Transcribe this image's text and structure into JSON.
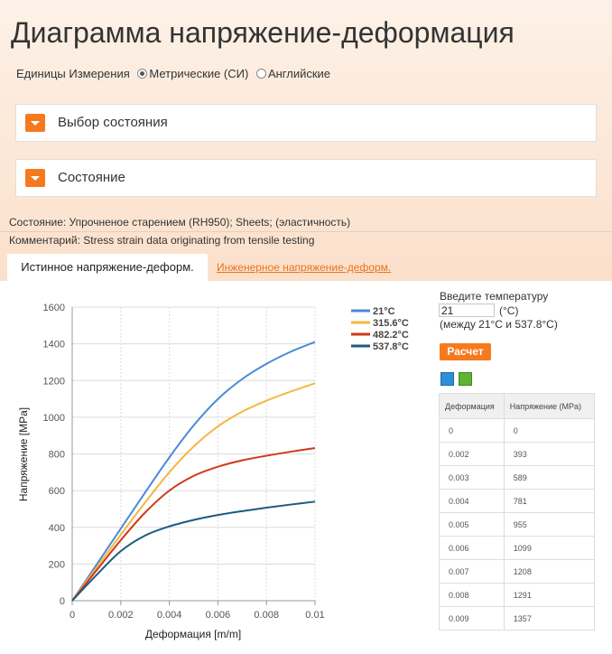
{
  "header": {
    "title": "Диаграмма напряжение-деформация",
    "units_label": "Единицы Измерения",
    "units_options": [
      "Метрические (СИ)",
      "Английские"
    ],
    "units_selected": "Метрические (СИ)"
  },
  "panels": [
    {
      "title": "Выбор состояния"
    },
    {
      "title": "Состояние"
    }
  ],
  "info": {
    "state": "Состояние: Упрочненое старением (RH950); Sheets; (эластичность)",
    "comment": "Комментарий: Stress strain data originating from tensile testing"
  },
  "tabs": {
    "active": "Истинное напряжение-деформ.",
    "inactive": "Инженерное напряжение-деформ."
  },
  "calculator": {
    "prompt": "Введите температуру",
    "value": "21",
    "unit": "(°C)",
    "range": "(между 21°C и 537.8°C)",
    "button": "Расчет"
  },
  "icons": {
    "export": "export-icon",
    "swap": "swap-icon"
  },
  "table": {
    "headers": [
      "Деформация",
      "Напряжение (MPa)"
    ],
    "rows": [
      [
        "0",
        "0"
      ],
      [
        "0.002",
        "393"
      ],
      [
        "0.003",
        "589"
      ],
      [
        "0.004",
        "781"
      ],
      [
        "0.005",
        "955"
      ],
      [
        "0.006",
        "1099"
      ],
      [
        "0.007",
        "1208"
      ],
      [
        "0.008",
        "1291"
      ],
      [
        "0.009",
        "1357"
      ]
    ]
  },
  "chart_data": {
    "type": "line",
    "xlabel": "Деформация [m/m]",
    "ylabel": "Напряжение [MPa]",
    "xlim": [
      0,
      0.01
    ],
    "ylim": [
      0,
      1600
    ],
    "xticks": [
      "0",
      "0.002",
      "0.004",
      "0.006",
      "0.008",
      "0.01"
    ],
    "yticks": [
      "0",
      "200",
      "400",
      "600",
      "800",
      "1000",
      "1200",
      "1400",
      "1600"
    ],
    "grid": true,
    "legend_position": "right",
    "series": [
      {
        "name": "21°C",
        "color": "#4a8ad9",
        "x": [
          0,
          0.001,
          0.002,
          0.003,
          0.004,
          0.005,
          0.006,
          0.007,
          0.008,
          0.009,
          0.01
        ],
        "y": [
          0,
          196,
          393,
          589,
          781,
          955,
          1099,
          1208,
          1291,
          1357,
          1410
        ]
      },
      {
        "name": "315.6°C",
        "color": "#f4b840",
        "x": [
          0,
          0.001,
          0.002,
          0.003,
          0.004,
          0.005,
          0.006,
          0.007,
          0.008,
          0.009,
          0.01
        ],
        "y": [
          0,
          180,
          360,
          535,
          700,
          840,
          950,
          1030,
          1090,
          1140,
          1185
        ]
      },
      {
        "name": "482.2°C",
        "color": "#d0381c",
        "x": [
          0,
          0.001,
          0.002,
          0.003,
          0.004,
          0.005,
          0.006,
          0.007,
          0.008,
          0.009,
          0.01
        ],
        "y": [
          0,
          165,
          330,
          480,
          600,
          680,
          730,
          765,
          790,
          812,
          832
        ]
      },
      {
        "name": "537.8°C",
        "color": "#1d5a80",
        "x": [
          0,
          0.001,
          0.002,
          0.003,
          0.004,
          0.005,
          0.006,
          0.007,
          0.008,
          0.009,
          0.01
        ],
        "y": [
          0,
          140,
          270,
          355,
          405,
          440,
          467,
          488,
          507,
          524,
          540
        ]
      }
    ]
  }
}
